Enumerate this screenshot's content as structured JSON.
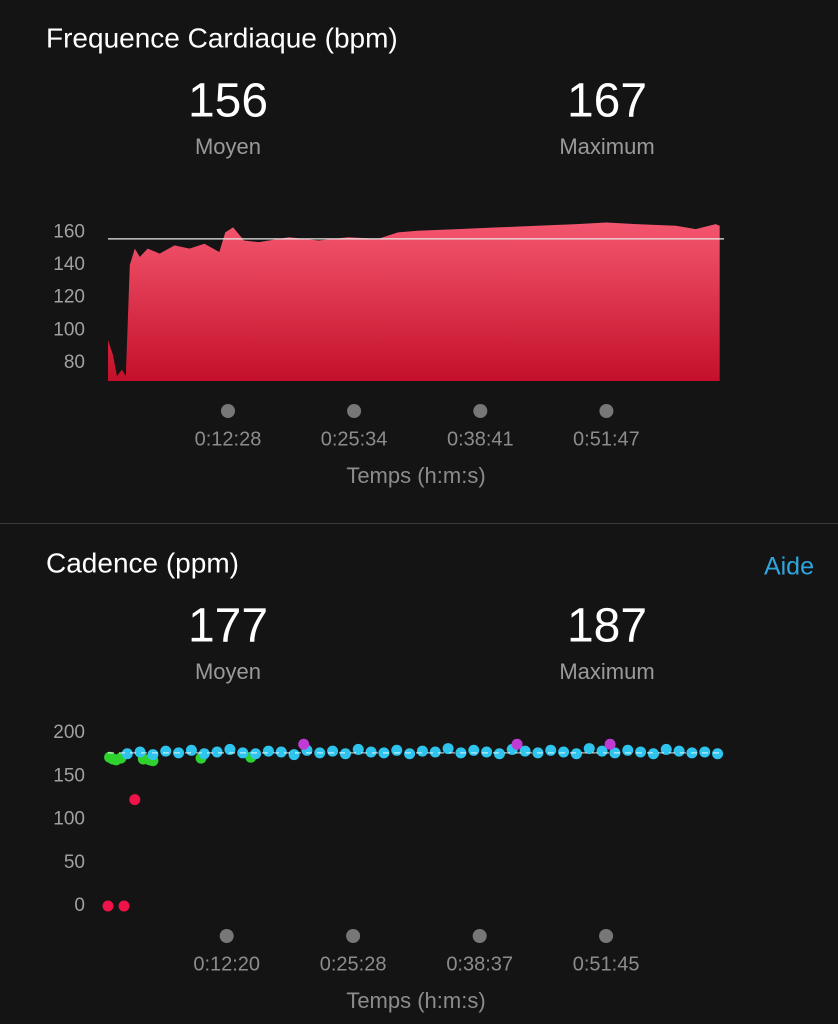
{
  "chart_data": [
    {
      "type": "area",
      "title": "Frequence Cardiaque (bpm)",
      "stats": [
        {
          "value": 156,
          "label": "Moyen"
        },
        {
          "value": 167,
          "label": "Maximum"
        }
      ],
      "x_label": "Temps (h:m:s)",
      "x": [
        0,
        31,
        56,
        87,
        111,
        136,
        167,
        198,
        248,
        322,
        415,
        508,
        601,
        694,
        731,
        780,
        848,
        941,
        1127,
        1313,
        1498,
        1684,
        1808,
        1931,
        2179,
        2426,
        2674,
        2921,
        3107,
        3292,
        3540,
        3664,
        3788,
        3813
      ],
      "values": [
        94,
        85,
        72,
        76,
        72,
        140,
        150,
        145,
        150,
        147,
        152,
        150,
        153,
        148,
        160,
        163,
        155,
        154,
        157,
        155,
        157,
        156,
        160,
        161,
        162,
        163,
        164,
        165,
        166,
        165,
        164,
        162,
        165,
        164
      ],
      "colors": [
        "#f4566f",
        "#c4102a"
      ],
      "xlim": [
        0,
        3840
      ],
      "ylim": [
        69,
        170
      ],
      "xticks": [
        {
          "value": 748,
          "label": "0:12:28"
        },
        {
          "value": 1534,
          "label": "0:25:34"
        },
        {
          "value": 2321,
          "label": "0:38:41"
        },
        {
          "value": 3107,
          "label": "0:51:47"
        }
      ],
      "yticks": [
        80,
        100,
        120,
        140,
        160
      ]
    },
    {
      "type": "scatter",
      "title": "Cadence (ppm)",
      "help_link": "Aide",
      "stats": [
        {
          "value": 177,
          "label": "Moyen"
        },
        {
          "value": 187,
          "label": "Maximum"
        }
      ],
      "x_label": "Temps (h:m:s)",
      "series": [
        {
          "color": "#f0134a",
          "x": [
            0,
            100,
            167
          ],
          "values": [
            0,
            0,
            123
          ]
        },
        {
          "color": "#2fd12f",
          "x": [
            10,
            30,
            50,
            80,
            220,
            260,
            280,
            580,
            890
          ],
          "values": [
            172,
            170,
            169,
            171,
            170,
            169,
            168,
            171,
            172
          ]
        },
        {
          "color": "#2ec4ee",
          "x": [
            120,
            200,
            280,
            360,
            440,
            520,
            600,
            680,
            760,
            840,
            920,
            1000,
            1080,
            1160,
            1240,
            1320,
            1400,
            1480,
            1560,
            1640,
            1720,
            1800,
            1880,
            1960,
            2040,
            2120,
            2200,
            2280,
            2360,
            2440,
            2520,
            2600,
            2680,
            2760,
            2840,
            2920,
            3000,
            3080,
            3160,
            3240,
            3320,
            3400,
            3480,
            3560,
            3640,
            3720,
            3800
          ],
          "values": [
            176,
            178,
            175,
            179,
            177,
            180,
            176,
            178,
            181,
            177,
            176,
            179,
            178,
            175,
            180,
            177,
            179,
            176,
            181,
            178,
            177,
            180,
            176,
            179,
            178,
            182,
            177,
            180,
            178,
            176,
            181,
            179,
            177,
            180,
            178,
            176,
            182,
            179,
            177,
            180,
            178,
            176,
            181,
            179,
            177,
            178,
            176
          ]
        },
        {
          "color": "#c03ad6",
          "x": [
            1220,
            2550,
            3130
          ],
          "values": [
            187,
            187,
            187
          ]
        }
      ],
      "xlim": [
        0,
        3840
      ],
      "ylim": [
        0,
        200
      ],
      "xticks": [
        {
          "value": 740,
          "label": "0:12:20"
        },
        {
          "value": 1528,
          "label": "0:25:28"
        },
        {
          "value": 2317,
          "label": "0:38:37"
        },
        {
          "value": 3105,
          "label": "0:51:45"
        }
      ],
      "yticks": [
        0,
        50,
        100,
        150,
        200
      ]
    }
  ]
}
